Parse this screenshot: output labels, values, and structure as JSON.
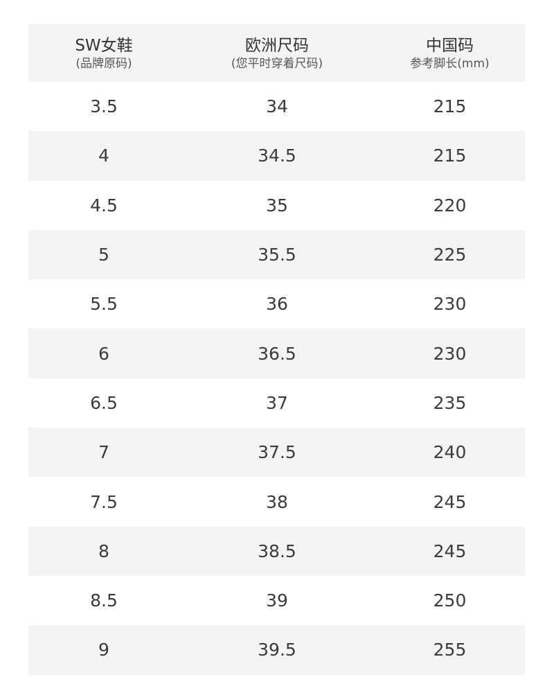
{
  "header": [
    {
      "title": "SW女鞋",
      "subtitle": "(品牌原码)"
    },
    {
      "title": "欧洲尺码",
      "subtitle": "(您平时穿着尺码)"
    },
    {
      "title": "中国码",
      "subtitle": "参考脚长(mm)"
    }
  ],
  "rows": [
    [
      "3.5",
      "34",
      "215"
    ],
    [
      "4",
      "34.5",
      "215"
    ],
    [
      "4.5",
      "35",
      "220"
    ],
    [
      "5",
      "35.5",
      "225"
    ],
    [
      "5.5",
      "36",
      "230"
    ],
    [
      "6",
      "36.5",
      "230"
    ],
    [
      "6.5",
      "37",
      "235"
    ],
    [
      "7",
      "37.5",
      "240"
    ],
    [
      "7.5",
      "38",
      "245"
    ],
    [
      "8",
      "38.5",
      "245"
    ],
    [
      "8.5",
      "39",
      "250"
    ],
    [
      "9",
      "39.5",
      "255"
    ]
  ],
  "colors": {
    "stripe": "#f3f3f3",
    "text": "#333333"
  }
}
